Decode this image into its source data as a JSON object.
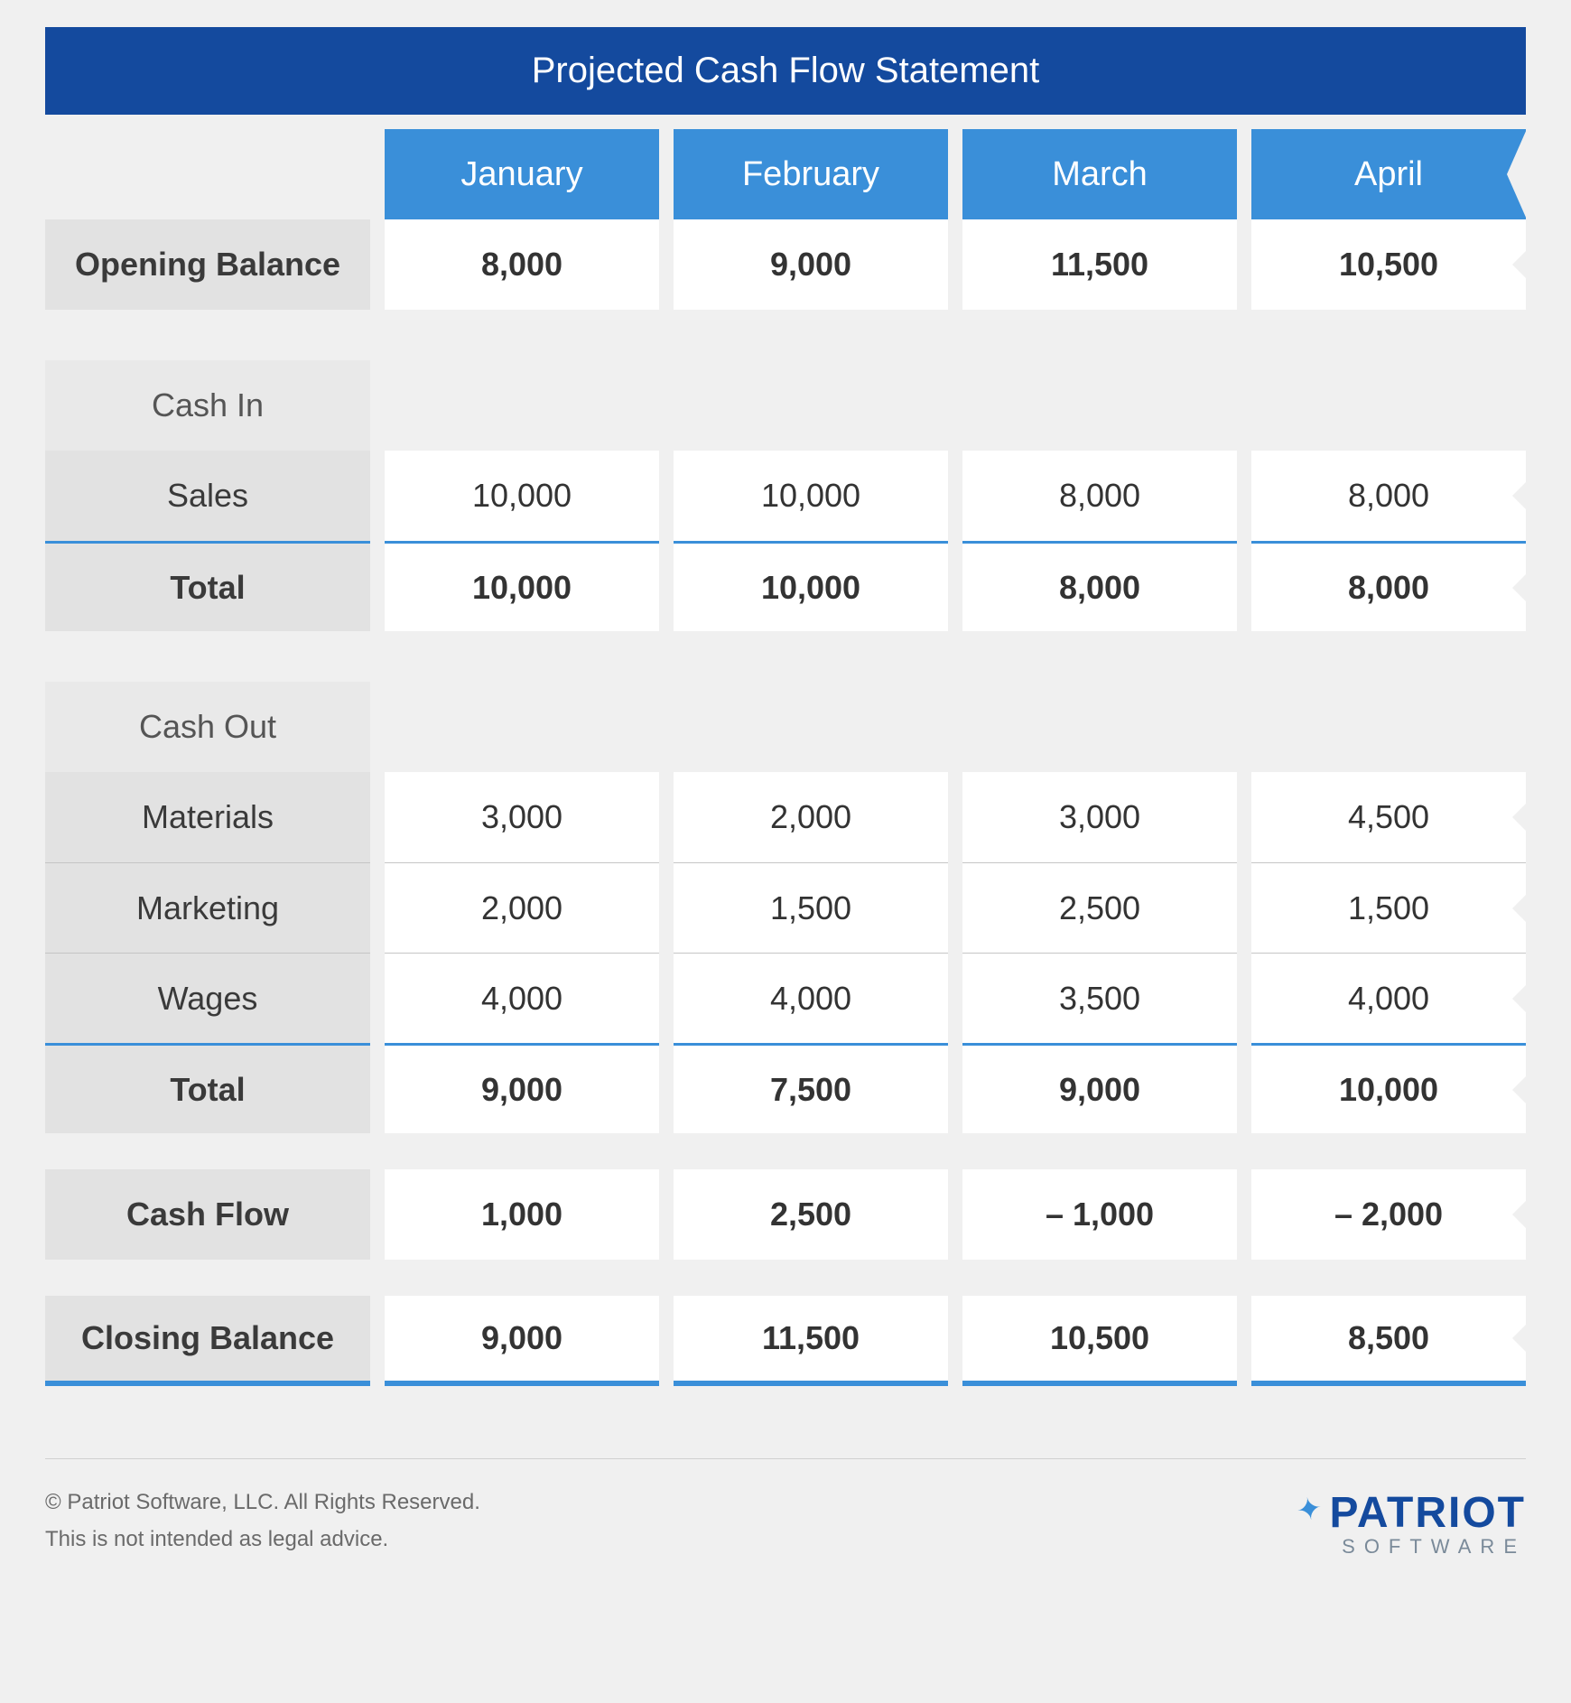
{
  "title": "Projected Cash Flow Statement",
  "colors": {
    "title_bg": "#144a9e",
    "header_bg": "#3a8fd9",
    "accent": "#3a8fd9",
    "page_bg": "#f0f0f0",
    "label_bg": "#e2e2e2",
    "section_bg": "#e9e9e9",
    "data_bg": "#ffffff",
    "text": "#333333",
    "footer_text": "#6a6a6a",
    "divider": "#c5c5c5"
  },
  "months": [
    "January",
    "February",
    "March",
    "April"
  ],
  "rows": {
    "opening_balance": {
      "label": "Opening Balance",
      "values": [
        "8,000",
        "9,000",
        "11,500",
        "10,500"
      ],
      "bold": true
    },
    "cash_in_header": {
      "label": "Cash In"
    },
    "sales": {
      "label": "Sales",
      "values": [
        "10,000",
        "10,000",
        "8,000",
        "8,000"
      ]
    },
    "cash_in_total": {
      "label": "Total",
      "values": [
        "10,000",
        "10,000",
        "8,000",
        "8,000"
      ],
      "bold": true
    },
    "cash_out_header": {
      "label": "Cash Out"
    },
    "materials": {
      "label": "Materials",
      "values": [
        "3,000",
        "2,000",
        "3,000",
        "4,500"
      ]
    },
    "marketing": {
      "label": "Marketing",
      "values": [
        "2,000",
        "1,500",
        "2,500",
        "1,500"
      ]
    },
    "wages": {
      "label": "Wages",
      "values": [
        "4,000",
        "4,000",
        "3,500",
        "4,000"
      ]
    },
    "cash_out_total": {
      "label": "Total",
      "values": [
        "9,000",
        "7,500",
        "9,000",
        "10,000"
      ],
      "bold": true
    },
    "cash_flow": {
      "label": "Cash Flow",
      "values": [
        "1,000",
        "2,500",
        "– 1,000",
        "– 2,000"
      ],
      "bold": true
    },
    "closing_balance": {
      "label": "Closing Balance",
      "values": [
        "9,000",
        "11,500",
        "10,500",
        "8,500"
      ],
      "bold": true
    }
  },
  "footer": {
    "line1": "© Patriot Software, LLC. All Rights Reserved.",
    "line2": "This is not intended as legal advice.",
    "brand_name": "PATRIOT",
    "brand_sub": "SOFTWARE"
  }
}
